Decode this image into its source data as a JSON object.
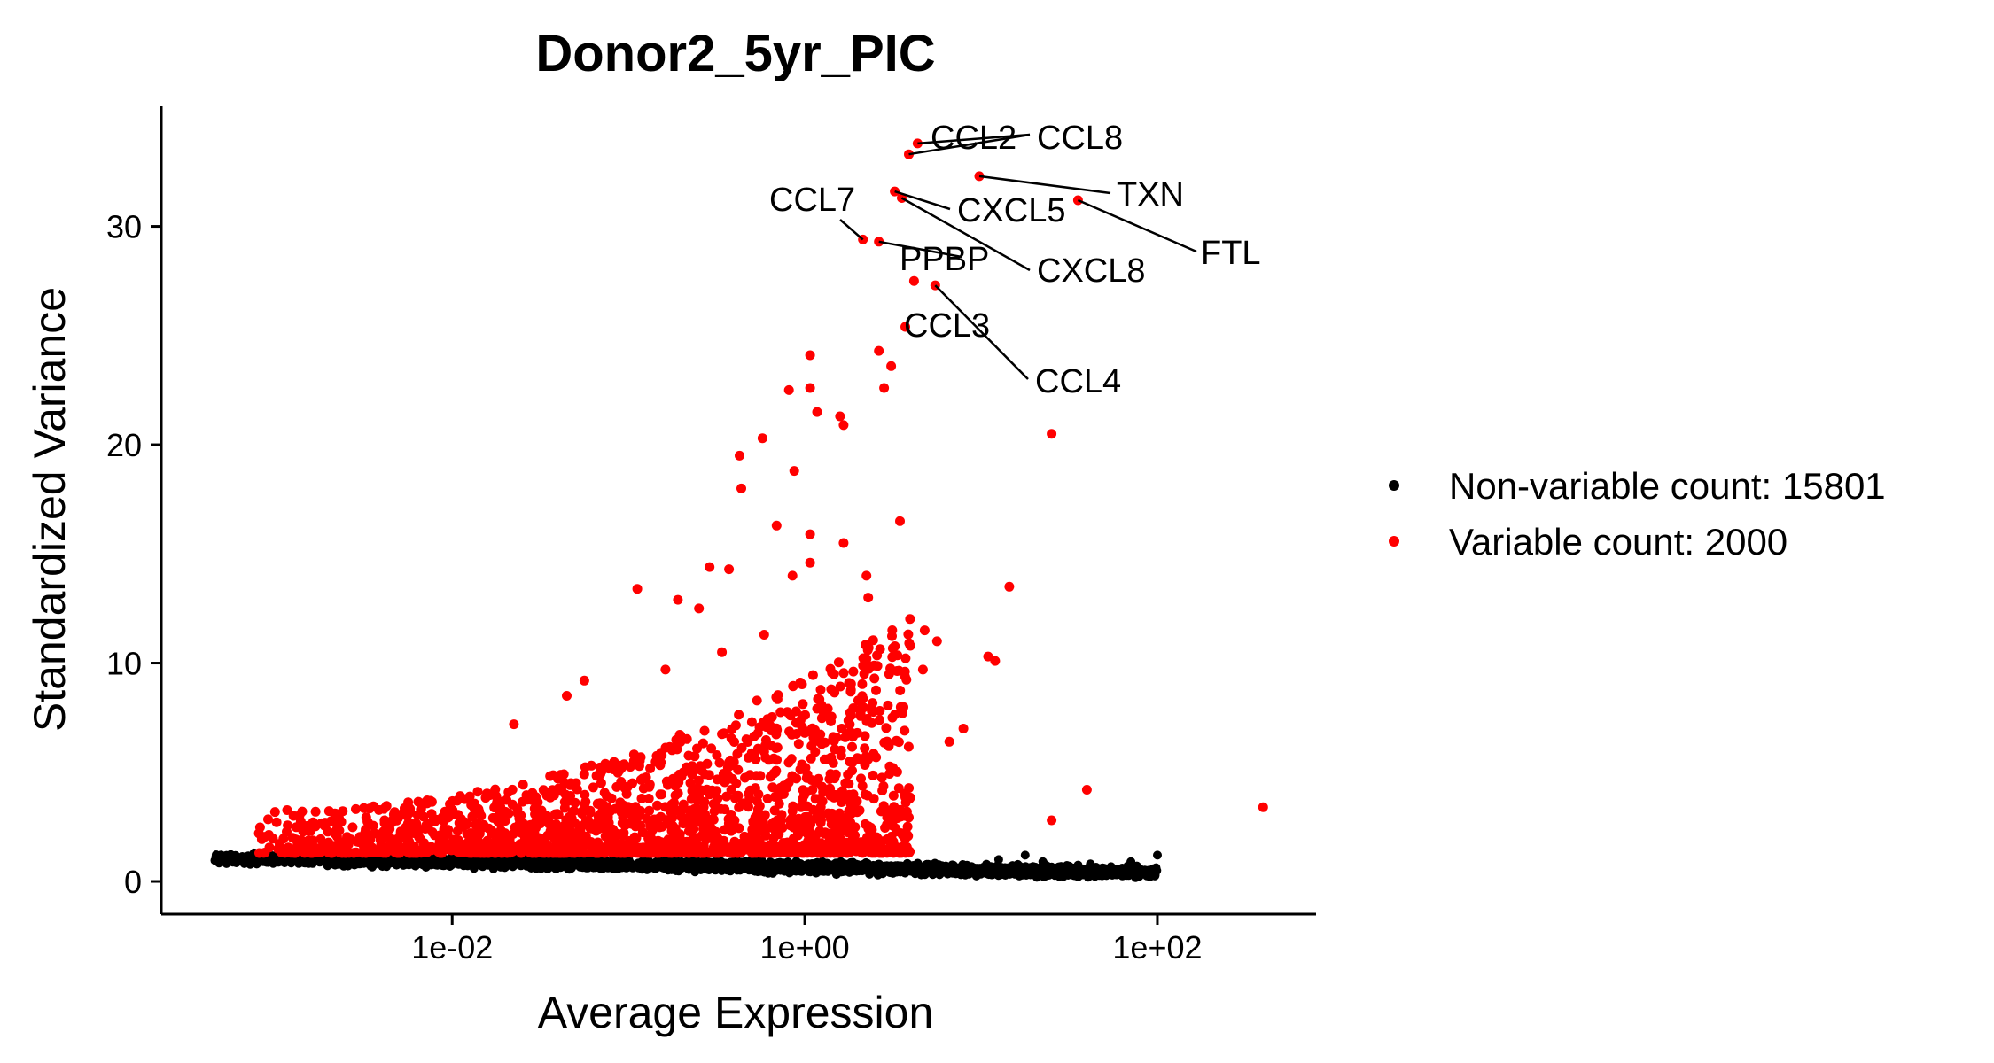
{
  "chart_data": {
    "type": "scatter",
    "title": "Donor2_5yr_PIC",
    "xlabel": "Average Expression",
    "ylabel": "Standardized Variance",
    "x_scale": "log10",
    "xlim_log10": [
      -3.65,
      2.9
    ],
    "ylim": [
      -1.5,
      35.5
    ],
    "x_ticks": [
      {
        "value": -2,
        "label": "1e-02"
      },
      {
        "value": 0,
        "label": "1e+00"
      },
      {
        "value": 2,
        "label": "1e+02"
      }
    ],
    "y_ticks": [
      {
        "value": 0,
        "label": "0"
      },
      {
        "value": 10,
        "label": "10"
      },
      {
        "value": 20,
        "label": "20"
      },
      {
        "value": 30,
        "label": "30"
      }
    ],
    "legend": {
      "position": "right",
      "entries": [
        {
          "label": "Non-variable count: 15801",
          "color": "#000000"
        },
        {
          "label": "Variable count: 2000",
          "color": "#ff0000"
        }
      ]
    },
    "series": [
      {
        "name": "Variable",
        "color": "#ff0000",
        "points_log10x_y": [
          [
            0.64,
            33.8
          ],
          [
            0.59,
            33.3
          ],
          [
            0.99,
            32.3
          ],
          [
            0.51,
            31.6
          ],
          [
            0.55,
            31.3
          ],
          [
            1.55,
            31.2
          ],
          [
            0.33,
            29.4
          ],
          [
            0.42,
            29.3
          ],
          [
            0.62,
            27.5
          ],
          [
            0.74,
            27.3
          ],
          [
            0.57,
            25.4
          ],
          [
            0.42,
            24.3
          ],
          [
            0.49,
            23.6
          ],
          [
            0.03,
            24.1
          ],
          [
            -0.09,
            22.5
          ],
          [
            0.03,
            22.6
          ],
          [
            0.07,
            21.5
          ],
          [
            0.2,
            21.3
          ],
          [
            0.22,
            20.9
          ],
          [
            0.45,
            22.6
          ],
          [
            -0.24,
            20.3
          ],
          [
            -0.37,
            19.5
          ],
          [
            -0.06,
            18.8
          ],
          [
            -0.36,
            18.0
          ],
          [
            1.4,
            20.5
          ],
          [
            -0.16,
            16.3
          ],
          [
            0.54,
            16.5
          ],
          [
            0.03,
            15.9
          ],
          [
            0.22,
            15.5
          ],
          [
            0.03,
            14.6
          ],
          [
            -0.07,
            14.0
          ],
          [
            0.35,
            14.0
          ],
          [
            0.36,
            13.0
          ],
          [
            -0.43,
            14.3
          ],
          [
            -0.54,
            14.4
          ],
          [
            -0.95,
            13.4
          ],
          [
            -0.72,
            12.9
          ],
          [
            -0.6,
            12.5
          ],
          [
            1.16,
            13.5
          ],
          [
            0.68,
            11.5
          ],
          [
            0.75,
            11.0
          ],
          [
            1.04,
            10.3
          ],
          [
            1.08,
            10.1
          ],
          [
            -0.23,
            11.3
          ],
          [
            -0.47,
            10.5
          ],
          [
            -1.25,
            9.2
          ],
          [
            -1.35,
            8.5
          ],
          [
            -0.79,
            9.7
          ],
          [
            0.67,
            9.7
          ],
          [
            1.6,
            4.2
          ],
          [
            2.6,
            3.4
          ],
          [
            1.4,
            2.8
          ],
          [
            0.15,
            8.8
          ],
          [
            0.38,
            7.8
          ],
          [
            0.9,
            7.0
          ],
          [
            0.82,
            6.4
          ],
          [
            0.5,
            5.2
          ],
          [
            0.0,
            6.8
          ],
          [
            -0.3,
            7.3
          ],
          [
            -1.65,
            7.2
          ]
        ]
      }
    ],
    "non_variable_summary": {
      "color": "#000000",
      "count": 15801,
      "note": "dense band near y 0.5-1.3 across x from 1e-03 to 1e+02"
    },
    "annotations": [
      {
        "text": "CCL2",
        "x": 0.64,
        "y": 33.8
      },
      {
        "text": "CCL8",
        "x": 0.59,
        "y": 33.3
      },
      {
        "text": "TXN",
        "x": 0.99,
        "y": 32.3
      },
      {
        "text": "CCL7",
        "x": 0.33,
        "y": 29.4
      },
      {
        "text": "CXCL5",
        "x": 0.51,
        "y": 31.6
      },
      {
        "text": "FTL",
        "x": 1.55,
        "y": 31.2
      },
      {
        "text": "PPBP",
        "x": 0.42,
        "y": 29.3
      },
      {
        "text": "CXCL8",
        "x": 0.55,
        "y": 31.3
      },
      {
        "text": "CCL3",
        "x": 0.57,
        "y": 25.4
      },
      {
        "text": "CCL4",
        "x": 0.74,
        "y": 27.3
      }
    ]
  }
}
